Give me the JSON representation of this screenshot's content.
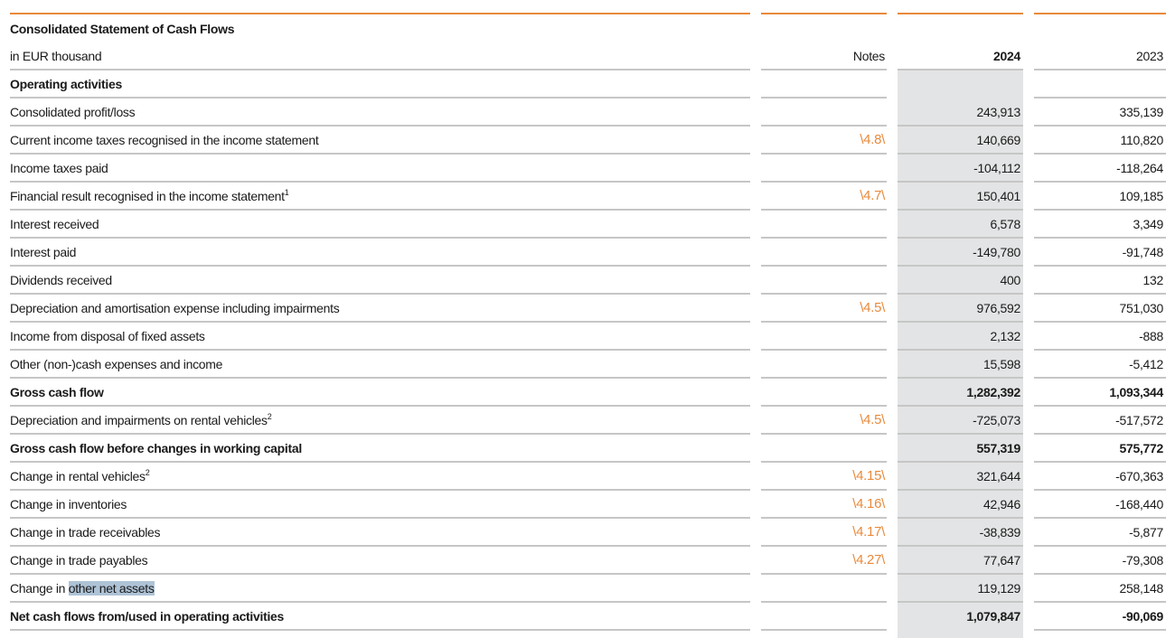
{
  "title": "Consolidated Statement of Cash Flows",
  "header": {
    "unit": "in EUR thousand",
    "notes": "Notes",
    "year_current": "2024",
    "year_prior": "2023"
  },
  "section": "Operating activities",
  "rows": [
    {
      "label": "Consolidated profit/loss",
      "note": "",
      "v2024": "243,913",
      "v2023": "335,139"
    },
    {
      "label": "Current income taxes recognised in the income statement",
      "note": "\\4.8\\",
      "v2024": "140,669",
      "v2023": "110,820"
    },
    {
      "label": "Income taxes paid",
      "note": "",
      "v2024": "-104,112",
      "v2023": "-118,264"
    },
    {
      "label": "Financial result recognised in the income statement",
      "sup": "1",
      "note": "\\4.7\\",
      "v2024": "150,401",
      "v2023": "109,185"
    },
    {
      "label": "Interest received",
      "note": "",
      "v2024": "6,578",
      "v2023": "3,349"
    },
    {
      "label": "Interest paid",
      "note": "",
      "v2024": "-149,780",
      "v2023": "-91,748"
    },
    {
      "label": "Dividends received",
      "note": "",
      "v2024": "400",
      "v2023": "132"
    },
    {
      "label": "Depreciation and amortisation expense including impairments",
      "note": "\\4.5\\",
      "v2024": "976,592",
      "v2023": "751,030"
    },
    {
      "label": "Income from disposal of fixed assets",
      "note": "",
      "v2024": "2,132",
      "v2023": "-888"
    },
    {
      "label": "Other (non-)cash expenses and income",
      "note": "",
      "v2024": "15,598",
      "v2023": "-5,412"
    },
    {
      "label": "Gross cash flow",
      "bold": true,
      "note": "",
      "v2024": "1,282,392",
      "v2023": "1,093,344"
    },
    {
      "label": "Depreciation and impairments on rental vehicles",
      "sup": "2",
      "note": "\\4.5\\",
      "v2024": "-725,073",
      "v2023": "-517,572"
    },
    {
      "label": "Gross cash flow before changes in working capital",
      "bold": true,
      "note": "",
      "v2024": "557,319",
      "v2023": "575,772"
    },
    {
      "label": "Change in rental vehicles",
      "sup": "2",
      "note": "\\4.15\\",
      "v2024": "321,644",
      "v2023": "-670,363"
    },
    {
      "label": "Change in inventories",
      "note": "\\4.16\\",
      "v2024": "42,946",
      "v2023": "-168,440"
    },
    {
      "label": "Change in trade receivables",
      "note": "\\4.17\\",
      "v2024": "-38,839",
      "v2023": "-5,877"
    },
    {
      "label": "Change in trade payables",
      "note": "\\4.27\\",
      "v2024": "77,647",
      "v2023": "-79,308"
    },
    {
      "label": "Change in ",
      "selected": "other net assets",
      "note": "",
      "v2024": "119,129",
      "v2023": "258,148"
    },
    {
      "label": "Net cash flows from/used in operating activities",
      "bold": true,
      "note": "",
      "v2024": "1,079,847",
      "v2023": "-90,069"
    }
  ]
}
